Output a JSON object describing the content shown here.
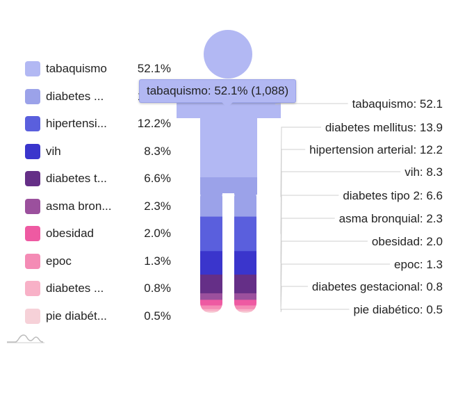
{
  "chart_data": {
    "type": "pictorial",
    "tooltip": "tabaquismo: 52.1% (1,088)",
    "categories": [
      "tabaquismo",
      "diabetes mellitus",
      "hipertension arterial",
      "vih",
      "diabetes tipo 2",
      "asma bronquial",
      "obesidad",
      "epoc",
      "diabetes gestacional",
      "pie diabético"
    ],
    "legend_labels": [
      "tabaquismo",
      "diabetes ...",
      "hipertensi...",
      "vih",
      "diabetes t...",
      "asma bron...",
      "obesidad",
      "epoc",
      "diabetes ...",
      "pie diabét..."
    ],
    "legend_values": [
      "52.1%",
      "13.9%",
      "12.2%",
      "8.3%",
      "6.6%",
      "2.3%",
      "2.0%",
      "1.3%",
      "0.8%",
      "0.5%"
    ],
    "values": [
      52.1,
      13.9,
      12.2,
      8.3,
      6.6,
      2.3,
      2.0,
      1.3,
      0.8,
      0.5
    ],
    "value_labels": [
      "52.1",
      "13.9",
      "12.2",
      "8.3",
      "6.6",
      "2.3",
      "2.0",
      "1.3",
      "0.8",
      "0.5"
    ],
    "colors": [
      "#b2b8f3",
      "#9ba2e9",
      "#5a5fdd",
      "#3a35cc",
      "#652f87",
      "#9b509d",
      "#ee5aa2",
      "#f48bb5",
      "#f8b1c7",
      "#f6d1d8"
    ],
    "legend_placement": "left"
  }
}
